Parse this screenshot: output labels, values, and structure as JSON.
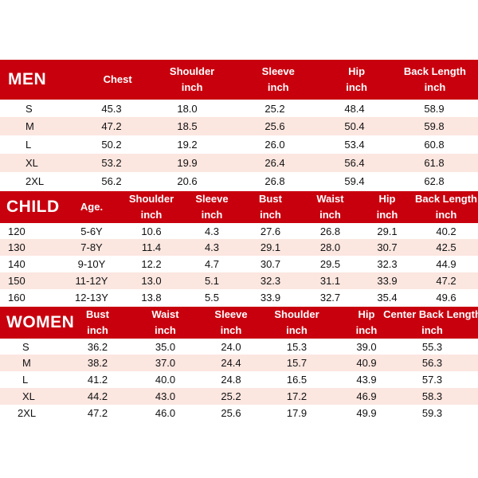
{
  "men": {
    "title": "MEN",
    "headers": [
      {
        "l1": "Chest",
        "l2": ""
      },
      {
        "l1": "Shoulder",
        "l2": "inch"
      },
      {
        "l1": "Sleeve",
        "l2": "inch"
      },
      {
        "l1": "Hip",
        "l2": "inch"
      },
      {
        "l1": "Back Length",
        "l2": "inch"
      }
    ],
    "rows": [
      [
        "S",
        "45.3",
        "18.0",
        "25.2",
        "48.4",
        "58.9"
      ],
      [
        "M",
        "47.2",
        "18.5",
        "25.6",
        "50.4",
        "59.8"
      ],
      [
        "L",
        "50.2",
        "19.2",
        "26.0",
        "53.4",
        "60.8"
      ],
      [
        "XL",
        "53.2",
        "19.9",
        "26.4",
        "56.4",
        "61.8"
      ],
      [
        "2XL",
        "56.2",
        "20.6",
        "26.8",
        "59.4",
        "62.8"
      ]
    ]
  },
  "child": {
    "title": "CHILD",
    "headers": [
      {
        "l1": "Age.",
        "l2": ""
      },
      {
        "l1": "Shoulder",
        "l2": "inch"
      },
      {
        "l1": "Sleeve",
        "l2": "inch"
      },
      {
        "l1": "Bust",
        "l2": "inch"
      },
      {
        "l1": "Waist",
        "l2": "inch"
      },
      {
        "l1": "Hip",
        "l2": "inch"
      },
      {
        "l1": "Back Length",
        "l2": "inch"
      }
    ],
    "rows": [
      [
        "120",
        "5-6Y",
        "10.6",
        "4.3",
        "27.6",
        "26.8",
        "29.1",
        "40.2"
      ],
      [
        "130",
        "7-8Y",
        "11.4",
        "4.3",
        "29.1",
        "28.0",
        "30.7",
        "42.5"
      ],
      [
        "140",
        "9-10Y",
        "12.2",
        "4.7",
        "30.7",
        "29.5",
        "32.3",
        "44.9"
      ],
      [
        "150",
        "11-12Y",
        "13.0",
        "5.1",
        "32.3",
        "31.1",
        "33.9",
        "47.2"
      ],
      [
        "160",
        "12-13Y",
        "13.8",
        "5.5",
        "33.9",
        "32.7",
        "35.4",
        "49.6"
      ]
    ]
  },
  "women": {
    "title": "WOMEN",
    "headers": [
      {
        "l1": "Bust",
        "l2": "inch"
      },
      {
        "l1": "Waist",
        "l2": "inch"
      },
      {
        "l1": "Sleeve",
        "l2": "inch"
      },
      {
        "l1": "Shoulder",
        "l2": "inch"
      },
      {
        "l1": "Hip",
        "l2": "inch"
      },
      {
        "l1": "Center Back Length",
        "l2": "inch"
      }
    ],
    "rows": [
      [
        "S",
        "36.2",
        "35.0",
        "24.0",
        "15.3",
        "39.0",
        "55.3"
      ],
      [
        "M",
        "38.2",
        "37.0",
        "24.4",
        "15.7",
        "40.9",
        "56.3"
      ],
      [
        "L",
        "41.2",
        "40.0",
        "24.8",
        "16.5",
        "43.9",
        "57.3"
      ],
      [
        "XL",
        "44.2",
        "43.0",
        "25.2",
        "17.2",
        "46.9",
        "58.3"
      ],
      [
        "2XL",
        "47.2",
        "46.0",
        "25.6",
        "17.9",
        "49.9",
        "59.3"
      ]
    ]
  }
}
